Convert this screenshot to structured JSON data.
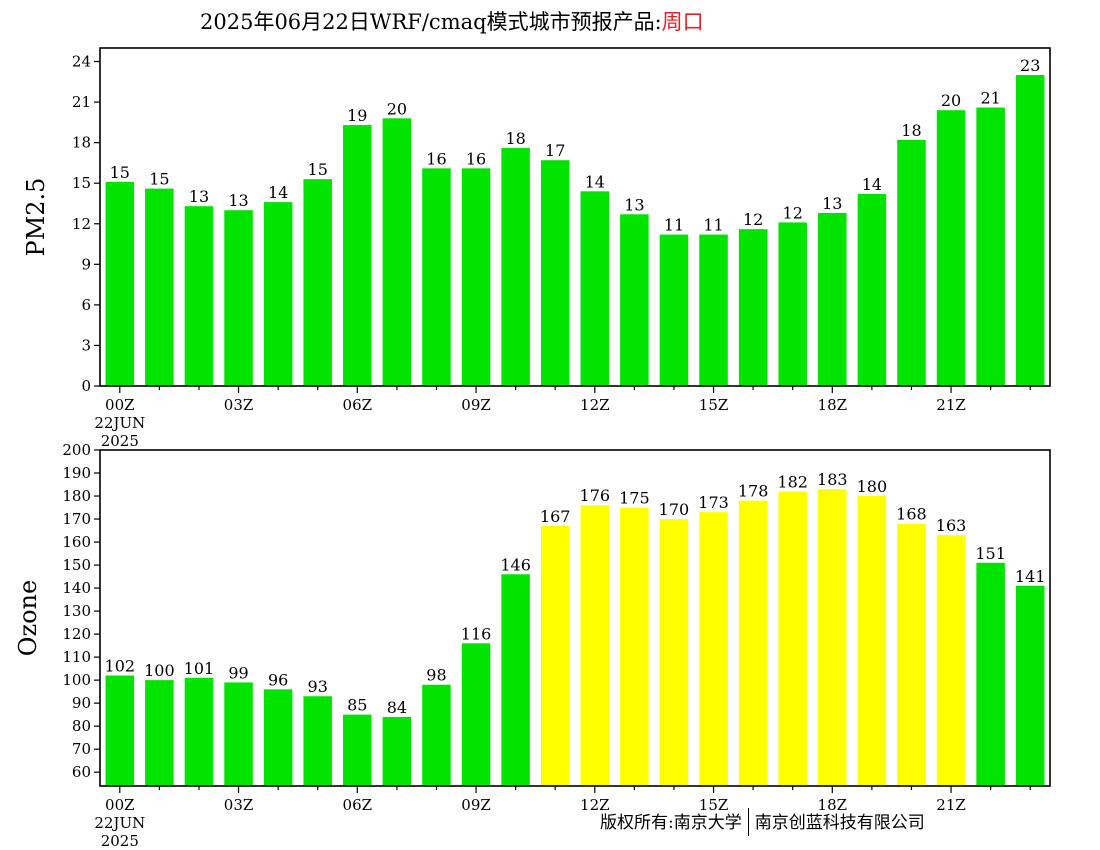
{
  "header": {
    "title_prefix": "2025年06月22日WRF/cmaq模式城市预报产品:",
    "city": "周口"
  },
  "footer": {
    "copyright_left": "版权所有:南京大学",
    "copyright_right": "南京创蓝科技有限公司"
  },
  "colors": {
    "good": "#00e400",
    "moderate": "#ffff00"
  },
  "chart_data": [
    {
      "type": "bar",
      "ylabel": "PM2.5",
      "ylim": [
        0,
        25
      ],
      "yticks": [
        0,
        3,
        6,
        9,
        12,
        15,
        18,
        21,
        24
      ],
      "x_tick_labels": [
        {
          "index": 0,
          "label": "00Z",
          "sub": [
            "22JUN",
            "2025"
          ]
        },
        {
          "index": 3,
          "label": "03Z"
        },
        {
          "index": 6,
          "label": "06Z"
        },
        {
          "index": 9,
          "label": "09Z"
        },
        {
          "index": 12,
          "label": "12Z"
        },
        {
          "index": 15,
          "label": "15Z"
        },
        {
          "index": 18,
          "label": "18Z"
        },
        {
          "index": 21,
          "label": "21Z"
        }
      ],
      "values": [
        15.1,
        14.6,
        13.3,
        13.0,
        13.6,
        15.3,
        19.3,
        19.8,
        16.1,
        16.1,
        17.6,
        16.7,
        14.4,
        12.7,
        11.2,
        11.2,
        11.6,
        12.1,
        12.8,
        14.2,
        18.2,
        20.4,
        20.6,
        23.0
      ],
      "labels": [
        "15",
        "15",
        "13",
        "13",
        "14",
        "15",
        "19",
        "20",
        "16",
        "16",
        "18",
        "17",
        "14",
        "13",
        "11",
        "11",
        "12",
        "12",
        "13",
        "14",
        "18",
        "20",
        "21",
        "23"
      ],
      "bar_colors": [
        "good",
        "good",
        "good",
        "good",
        "good",
        "good",
        "good",
        "good",
        "good",
        "good",
        "good",
        "good",
        "good",
        "good",
        "good",
        "good",
        "good",
        "good",
        "good",
        "good",
        "good",
        "good",
        "good",
        "good"
      ]
    },
    {
      "type": "bar",
      "ylabel": "Ozone",
      "ylim": [
        54,
        200
      ],
      "yticks": [
        60,
        70,
        80,
        90,
        100,
        110,
        120,
        130,
        140,
        150,
        160,
        170,
        180,
        190,
        200
      ],
      "x_tick_labels": [
        {
          "index": 0,
          "label": "00Z",
          "sub": [
            "22JUN",
            "2025"
          ]
        },
        {
          "index": 3,
          "label": "03Z"
        },
        {
          "index": 6,
          "label": "06Z"
        },
        {
          "index": 9,
          "label": "09Z"
        },
        {
          "index": 12,
          "label": "12Z"
        },
        {
          "index": 15,
          "label": "15Z"
        },
        {
          "index": 18,
          "label": "18Z"
        },
        {
          "index": 21,
          "label": "21Z"
        }
      ],
      "values": [
        102,
        100,
        101,
        99,
        96,
        93,
        85,
        84,
        98,
        116,
        146,
        167,
        176,
        175,
        170,
        173,
        178,
        182,
        183,
        180,
        168,
        163,
        151,
        141
      ],
      "labels": [
        "102",
        "100",
        "101",
        "99",
        "96",
        "93",
        "85",
        "84",
        "98",
        "116",
        "146",
        "167",
        "176",
        "175",
        "170",
        "173",
        "178",
        "182",
        "183",
        "180",
        "168",
        "163",
        "151",
        "141"
      ],
      "bar_colors": [
        "good",
        "good",
        "good",
        "good",
        "good",
        "good",
        "good",
        "good",
        "good",
        "good",
        "good",
        "moderate",
        "moderate",
        "moderate",
        "moderate",
        "moderate",
        "moderate",
        "moderate",
        "moderate",
        "moderate",
        "moderate",
        "moderate",
        "good",
        "good"
      ]
    }
  ]
}
